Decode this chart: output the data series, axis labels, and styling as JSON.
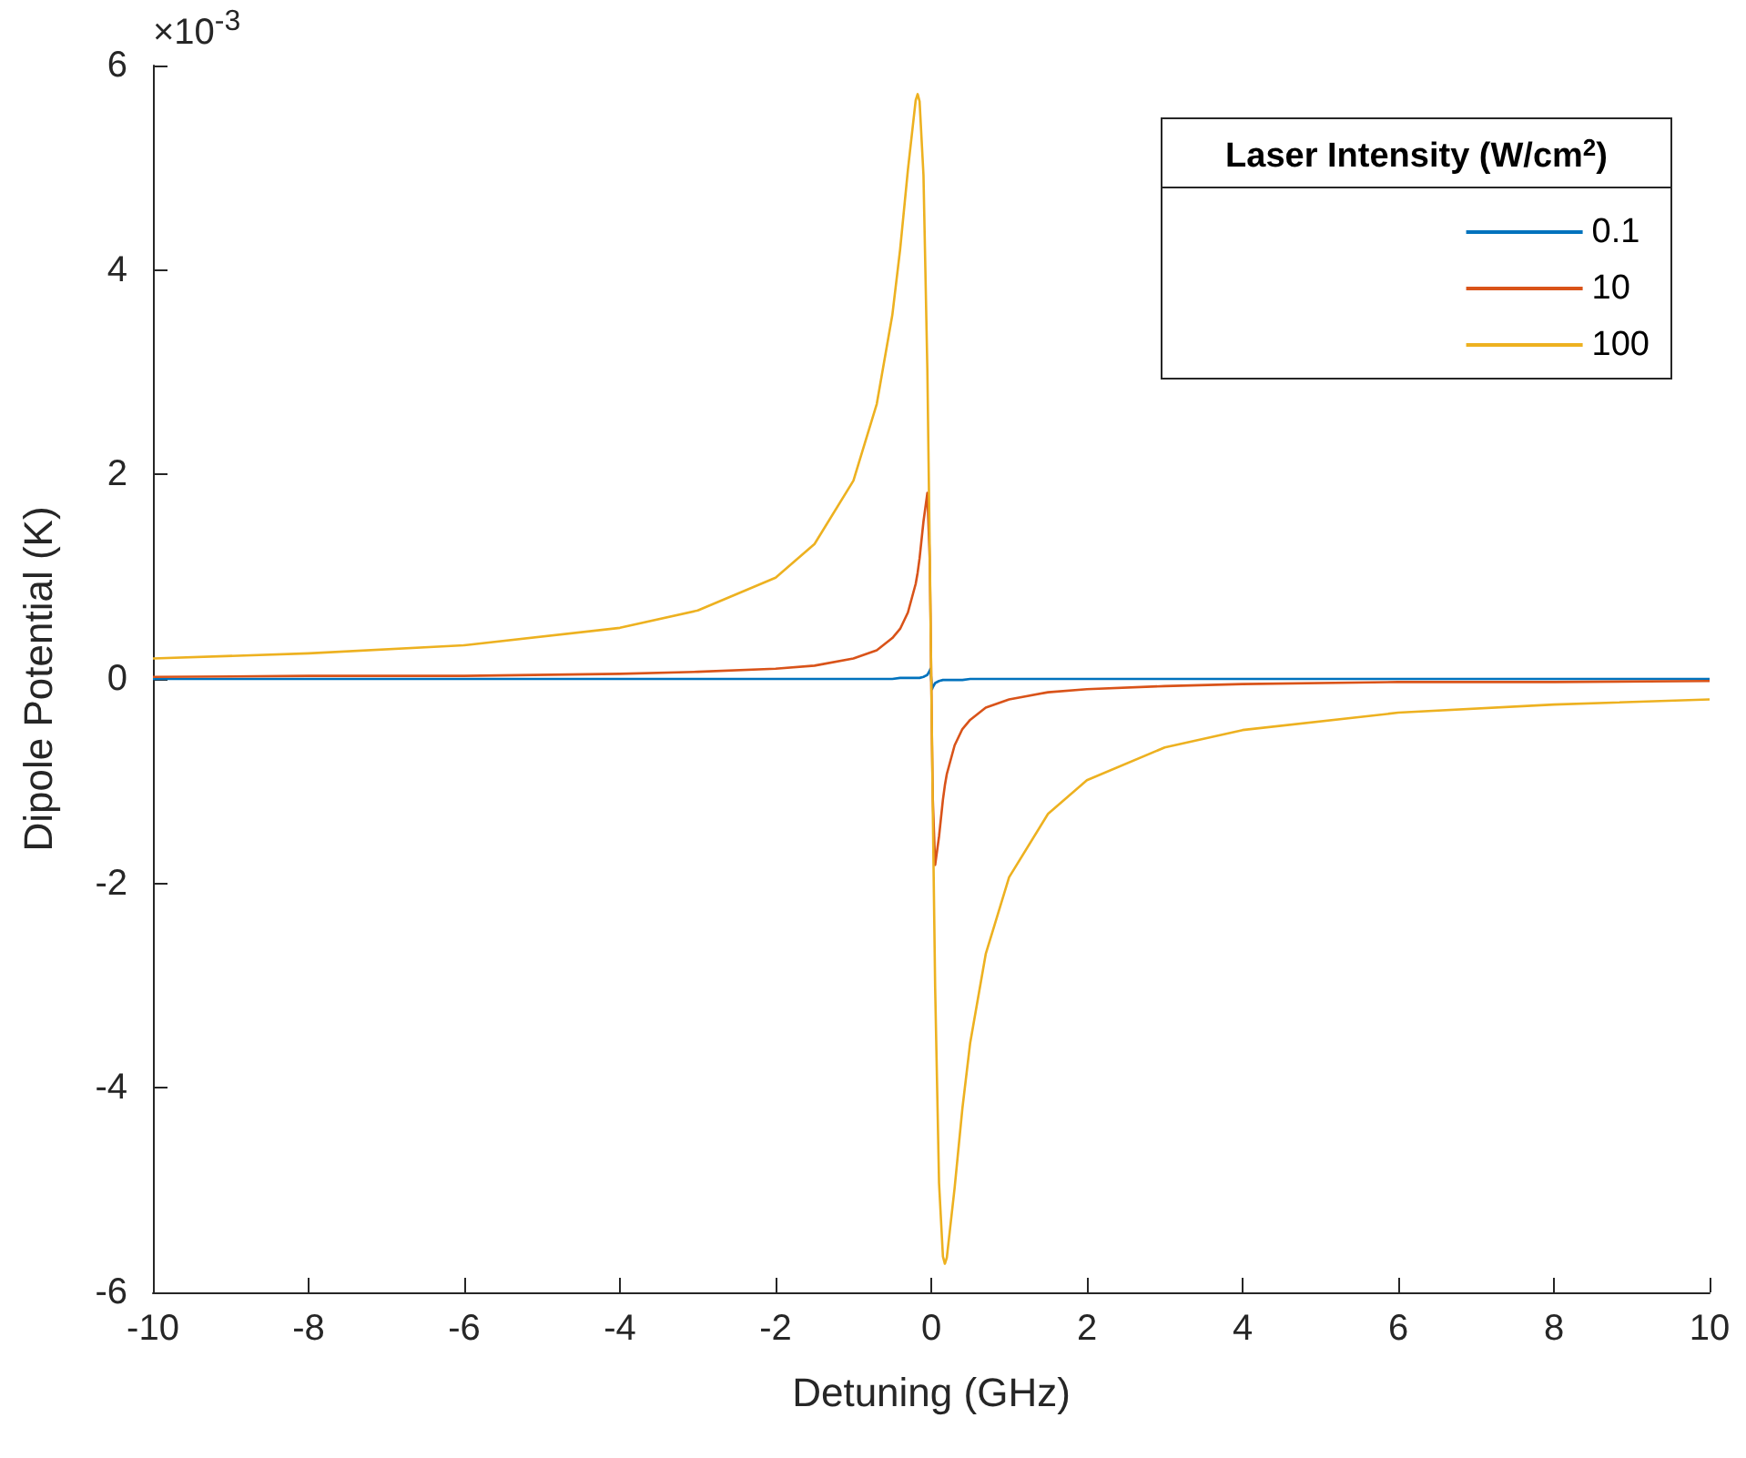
{
  "chart_data": {
    "type": "line",
    "xlabel": "Detuning (GHz)",
    "ylabel": "Dipole Potential (K)",
    "legend_title": "Laser Intensity (W/cm$^{2}$)",
    "annotations": [
      "×10$^{-3}$"
    ],
    "x": [
      -10,
      -8,
      -6,
      -4,
      -3,
      -2,
      -1.5,
      -1,
      -0.7,
      -0.5,
      -0.4,
      -0.3,
      -0.2,
      -0.175,
      -0.15,
      -0.1,
      -0.05,
      -0.02,
      -0.01,
      0,
      0.01,
      0.02,
      0.05,
      0.1,
      0.15,
      0.175,
      0.2,
      0.3,
      0.4,
      0.5,
      0.7,
      1,
      1.5,
      2,
      3,
      4,
      6,
      8,
      10
    ],
    "series": [
      {
        "name": "0.1",
        "color": "#0072bd",
        "values": [
          0,
          0,
          0,
          0,
          0,
          0,
          0,
          0,
          0,
          0,
          0.01,
          0.01,
          0.01,
          0.01,
          0.01,
          0.02,
          0.04,
          0.08,
          0.1,
          0,
          -0.1,
          -0.08,
          -0.04,
          -0.02,
          -0.01,
          -0.01,
          -0.01,
          -0.01,
          -0.01,
          0,
          0,
          0,
          0,
          0,
          0,
          0,
          0,
          0,
          0
        ]
      },
      {
        "name": "10",
        "color": "#d95319",
        "values": [
          0.02,
          0.03,
          0.03,
          0.05,
          0.07,
          0.1,
          0.13,
          0.2,
          0.28,
          0.4,
          0.49,
          0.65,
          0.93,
          1.04,
          1.18,
          1.54,
          1.82,
          1.18,
          0.65,
          0,
          -0.65,
          -1.18,
          -1.82,
          -1.54,
          -1.18,
          -1.04,
          -0.93,
          -0.65,
          -0.49,
          -0.4,
          -0.28,
          -0.2,
          -0.13,
          -0.1,
          -0.07,
          -0.05,
          -0.03,
          -0.03,
          -0.02
        ]
      },
      {
        "name": "100",
        "color": "#edb120",
        "values": [
          0.2,
          0.25,
          0.33,
          0.5,
          0.67,
          0.99,
          1.32,
          1.94,
          2.69,
          3.56,
          4.2,
          4.98,
          5.66,
          5.72,
          5.65,
          4.93,
          3.02,
          1.29,
          0.65,
          0,
          -0.65,
          -1.29,
          -3.02,
          -4.93,
          -5.65,
          -5.72,
          -5.66,
          -4.98,
          -4.2,
          -3.56,
          -2.69,
          -1.94,
          -1.32,
          -0.99,
          -0.67,
          -0.5,
          -0.33,
          -0.25,
          -0.2
        ]
      }
    ],
    "xlim": [
      -10,
      10
    ],
    "xticks": [
      -10,
      -8,
      -6,
      -4,
      -2,
      0,
      2,
      4,
      6,
      8,
      10
    ],
    "ylim": [
      -6,
      6
    ],
    "yticks": [
      -6,
      -4,
      -2,
      0,
      2,
      4,
      6
    ],
    "grid": false,
    "legend": "top right",
    "marker": "none",
    "line_style": "solid"
  }
}
